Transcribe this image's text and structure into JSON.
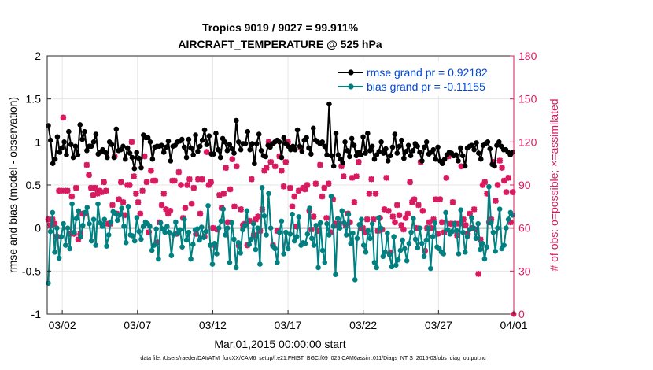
{
  "colors": {
    "rmse": "#000000",
    "bias": "#008080",
    "obs": "#d81b60",
    "zero_line": "#b4b4b4",
    "legend_text": "#0047d8",
    "grid": "#e6e6e6"
  },
  "chart_data": {
    "type": "line",
    "title": "Tropics 9019 / 9027 = 99.911%",
    "subtitle": "AIRCRAFT_TEMPERATURE @ 525 hPa",
    "xlabel": "Mar.01,2015 00:00:00 start",
    "ylabel": "rmse and bias (model - observation)",
    "y2label": "# of obs: o=possible; ×=assimilated",
    "footer": "data file: /Users/raeder/DAI/ATM_forcXX/CAM6_setup/f.e21.FHIST_BGC.f09_025.CAM6assim.011/Diags_NTrS_2015-03/obs_diag_output.nc",
    "xlim": [
      0,
      31
    ],
    "ylim": [
      -1,
      2
    ],
    "y2lim": [
      0,
      180
    ],
    "x_ticks": [
      {
        "value": 1,
        "label": "03/02"
      },
      {
        "value": 6,
        "label": "03/07"
      },
      {
        "value": 11,
        "label": "03/12"
      },
      {
        "value": 16,
        "label": "03/17"
      },
      {
        "value": 21,
        "label": "03/22"
      },
      {
        "value": 26,
        "label": "03/27"
      },
      {
        "value": 31,
        "label": "04/01"
      }
    ],
    "y_ticks": [
      {
        "value": -1,
        "label": "-1"
      },
      {
        "value": -0.5,
        "label": "-0.5"
      },
      {
        "value": 0,
        "label": "0"
      },
      {
        "value": 0.5,
        "label": "0.5"
      },
      {
        "value": 1,
        "label": "1"
      },
      {
        "value": 1.5,
        "label": "1.5"
      },
      {
        "value": 2,
        "label": "2"
      }
    ],
    "y2_ticks": [
      {
        "value": 0,
        "label": "0"
      },
      {
        "value": 30,
        "label": "30"
      },
      {
        "value": 60,
        "label": "60"
      },
      {
        "value": 90,
        "label": "90"
      },
      {
        "value": 120,
        "label": "120"
      },
      {
        "value": 150,
        "label": "150"
      },
      {
        "value": 180,
        "label": "180"
      }
    ],
    "series": [
      {
        "name": "rmse grand pr = 0.92182",
        "values": [
          1.19,
          1.02,
          0.75,
          0.8,
          1.06,
          0.88,
          0.93,
          1.0,
          0.85,
          1.12,
          0.97,
          0.82,
          0.95,
          0.85,
          1.2,
          1.03,
          1.12,
          0.9,
          0.95,
          0.95,
          1.0,
          1.09,
          0.86,
          0.88,
          0.91,
          0.88,
          0.82,
          1.0,
          0.97,
          0.82,
          1.15,
          0.9,
          0.91,
          0.95,
          0.8,
          0.93,
          0.87,
          0.82,
          0.69,
          0.88,
          0.81,
          0.7,
          1.08,
          1.05,
          1.05,
          1.0,
          0.8,
          0.94,
          0.95,
          0.95,
          0.96,
          0.88,
          0.94,
          1.01,
          0.78,
          0.95,
          0.96,
          1.0,
          1.01,
          1.03,
          0.94,
          0.82,
          1.03,
          0.93,
          0.85,
          1.08,
          0.89,
          0.95,
          1.02,
          1.14,
          0.97,
          1.07,
          0.86,
          0.86,
          1.1,
          0.91,
          0.82,
          1.04,
          1.0,
          0.9,
          0.97,
          0.92,
          0.87,
          1.25,
          1.0,
          0.91,
          0.98,
          0.98,
          1.12,
          0.91,
          0.98,
          0.75,
          0.98,
          1.09,
          0.9,
          0.84,
          0.83,
          0.96,
          0.94,
          0.98,
          1.0,
          1.02,
          1.0,
          0.82,
          1.05,
          0.98,
          0.95,
          0.91,
          0.95,
          0.91,
          1.14,
          0.95,
          0.89,
          1.02,
          1.05,
          0.93,
          0.86,
          1.16,
          1.02,
          1.0,
          0.98,
          1.0,
          0.95,
          0.85,
          1.44,
          0.84,
          0.72,
          1.1,
          0.85,
          0.8,
          0.76,
          1.0,
          0.9,
          0.83,
          1.04,
          0.96,
          0.84,
          0.88,
          0.85,
          1.06,
          0.87,
          1.1,
          0.9,
          0.95,
          0.8,
          0.85,
          0.89,
          1.0,
          0.87,
          0.92,
          0.78,
          0.84,
          0.94,
          1.09,
          0.87,
          0.95,
          1.02,
          0.81,
          0.89,
          0.96,
          0.84,
          0.9,
          0.98,
          0.95,
          0.88,
          0.78,
          0.94,
          1.0,
          0.86,
          0.88,
          0.91,
          0.8,
          0.94,
          0.78,
          0.75,
          0.8,
          0.85,
          0.88,
          0.87,
          0.84,
          0.85,
          0.78,
          0.93,
          0.84,
          0.72,
          0.93,
          0.95,
          0.96,
          0.91,
          0.99,
          0.87,
          0.8,
          0.96,
          0.98,
          1.0,
          0.92,
          0.74,
          0.72,
          0.96,
          1.0,
          0.95,
          0.91,
          0.91,
          0.88,
          0.85,
          0.88
        ]
      },
      {
        "name": "bias grand pr = -0.11155",
        "values": [
          -0.64,
          -0.04,
          0.18,
          -0.28,
          0.0,
          -0.35,
          -0.1,
          0.05,
          -0.2,
          0.0,
          -0.24,
          0.28,
          -0.05,
          0.11,
          0.2,
          -0.1,
          0.03,
          0.18,
          0.24,
          0.05,
          -0.15,
          0.1,
          -0.2,
          0.28,
          0.06,
          0.02,
          0.1,
          -0.21,
          -0.08,
          0.07,
          0.19,
          0.17,
          0.09,
          0.15,
          0.23,
          0.02,
          -0.17,
          0.25,
          -0.08,
          -0.09,
          -0.15,
          0.12,
          -0.04,
          -0.13,
          0.02,
          0.07,
          0.05,
          0.02,
          -0.26,
          -0.2,
          -0.01,
          -0.36,
          0.06,
          -0.01,
          -0.05,
          0.02,
          -0.05,
          -0.32,
          -0.08,
          0.07,
          -0.06,
          -0.02,
          -0.22,
          0.1,
          -0.14,
          -0.05,
          -0.36,
          -0.19,
          -0.02,
          -0.01,
          -0.14,
          0.01,
          -0.11,
          -0.04,
          0.26,
          -0.2,
          -0.42,
          -0.18,
          -0.3,
          0.0,
          0.08,
          0.22,
          -0.08,
          0.0,
          -0.4,
          0.06,
          -0.13,
          -0.46,
          -0.17,
          -0.29,
          -0.02,
          0.03,
          0.2,
          -0.19,
          -0.13,
          0.05,
          -0.25,
          0.0,
          -0.42,
          0.47,
          0.14,
          -0.08,
          0.4,
          0.0,
          -0.21,
          -0.24,
          -0.4,
          -0.05,
          0.08,
          -0.3,
          -0.05,
          -0.24,
          -0.07,
          0.16,
          -0.15,
          -0.1,
          0.13,
          -0.2,
          -0.17,
          -0.18,
          -0.07,
          0.23,
          -0.12,
          -0.2,
          0.03,
          -0.46,
          0.06,
          -0.26,
          -0.4,
          0.05,
          -0.08,
          0.37,
          0.02,
          -0.54,
          0.11,
          0.0,
          0.2,
          0.06,
          -0.08,
          0.16,
          -0.18,
          -0.06,
          -0.6,
          -0.12,
          0.04,
          0.1,
          -0.2,
          -0.28,
          -0.03,
          -0.12,
          0.05,
          -0.4,
          -0.46,
          0.12,
          0.0,
          -0.33,
          -0.28,
          -0.06,
          -0.31,
          -0.45,
          -0.1,
          -0.43,
          -0.37,
          -0.26,
          -0.14,
          -0.24,
          -0.38,
          -0.18,
          -0.05,
          0.11,
          -0.13,
          -0.23,
          0.0,
          -0.18,
          -0.33,
          -0.14,
          0.0,
          -0.47,
          -0.1,
          0.06,
          -0.22,
          -0.24,
          -0.28,
          -0.3,
          0.18,
          -0.02,
          -0.07,
          -0.04,
          0.05,
          -0.03,
          -0.3,
          0.21,
          -0.05,
          -0.28,
          -0.1,
          -0.02,
          0.12,
          0.0,
          -0.12,
          0.05,
          -0.25,
          -0.18,
          -0.36,
          -0.22,
          0.48,
          0.06,
          -0.05,
          -0.27,
          0.0,
          0.22,
          -0.24,
          -0.2,
          0.0,
          0.1,
          0.18,
          0.15
        ]
      }
    ],
    "obs_possible": [
      66,
      62,
      66,
      63,
      54,
      86,
      86,
      137,
      86,
      86,
      56,
      82,
      56,
      88,
      52,
      56,
      70,
      70,
      104,
      97,
      88,
      83,
      88,
      84,
      86,
      85,
      92,
      86,
      63,
      63,
      76,
      110,
      70,
      80,
      92,
      78,
      69,
      90,
      90,
      120,
      96,
      84,
      78,
      70,
      86,
      110,
      92,
      57,
      100,
      93,
      93,
      50,
      64,
      76,
      84,
      73,
      70,
      72,
      93,
      93,
      56,
      99,
      90,
      67,
      74,
      90,
      94,
      77,
      88,
      56,
      94,
      70,
      94,
      54,
      113,
      90,
      92,
      60,
      48,
      59,
      83,
      74,
      84,
      102,
      64,
      87,
      108,
      75,
      103,
      48,
      73,
      62,
      63,
      48,
      65,
      94,
      55,
      66,
      68,
      58,
      73,
      100,
      102,
      120,
      106,
      48,
      103,
      58,
      110,
      100,
      89,
      106,
      120,
      88,
      75,
      82,
      61,
      86,
      116,
      88,
      87,
      90,
      72,
      59,
      68,
      91,
      58,
      104,
      82,
      88,
      67,
      91,
      57,
      80,
      63,
      62,
      63,
      103,
      96,
      62,
      70,
      64,
      95,
      78,
      96,
      106,
      60,
      60,
      57,
      66,
      84,
      94,
      66,
      84,
      58,
      67,
      59,
      73,
      95,
      72,
      43,
      68,
      64,
      76,
      69,
      62,
      59,
      67,
      70,
      92,
      78,
      80,
      60,
      76,
      106,
      72,
      44,
      60,
      64,
      60,
      66,
      80,
      56,
      80,
      64,
      57,
      95,
      110,
      63,
      78,
      63,
      55,
      63,
      103,
      66,
      62,
      56,
      70,
      60,
      73,
      59,
      28,
      52,
      90,
      92,
      84,
      64,
      66,
      106,
      79,
      90,
      107,
      102,
      93,
      85,
      95,
      64,
      85
    ],
    "obs_assimilated": [
      66,
      62,
      66,
      63,
      54,
      86,
      86,
      137,
      86,
      86,
      56,
      82,
      56,
      88,
      52,
      56,
      70,
      70,
      104,
      97,
      88,
      83,
      88,
      84,
      86,
      85,
      92,
      86,
      63,
      63,
      76,
      110,
      70,
      80,
      92,
      78,
      69,
      90,
      90,
      120,
      96,
      84,
      78,
      70,
      86,
      110,
      92,
      57,
      100,
      93,
      93,
      50,
      64,
      76,
      84,
      73,
      70,
      72,
      93,
      93,
      56,
      99,
      90,
      67,
      74,
      90,
      94,
      77,
      88,
      56,
      94,
      70,
      94,
      54,
      113,
      90,
      92,
      60,
      48,
      59,
      83,
      74,
      84,
      102,
      64,
      87,
      108,
      75,
      103,
      48,
      73,
      62,
      63,
      48,
      65,
      94,
      55,
      66,
      68,
      58,
      73,
      100,
      102,
      120,
      106,
      48,
      103,
      58,
      110,
      100,
      89,
      106,
      120,
      88,
      75,
      82,
      61,
      86,
      116,
      88,
      87,
      90,
      72,
      59,
      68,
      91,
      58,
      104,
      82,
      88,
      67,
      91,
      57,
      80,
      63,
      62,
      63,
      103,
      96,
      62,
      70,
      64,
      95,
      78,
      96,
      106,
      60,
      60,
      57,
      66,
      84,
      94,
      66,
      84,
      58,
      67,
      59,
      73,
      95,
      72,
      43,
      68,
      64,
      76,
      69,
      62,
      59,
      67,
      70,
      92,
      78,
      80,
      60,
      76,
      106,
      72,
      44,
      60,
      64,
      60,
      66,
      80,
      56,
      80,
      64,
      57,
      95,
      110,
      63,
      78,
      63,
      55,
      63,
      103,
      66,
      62,
      56,
      70,
      60,
      73,
      59,
      28,
      52,
      90,
      92,
      84,
      64,
      66,
      106,
      79,
      90,
      107,
      102,
      93,
      85,
      95,
      64,
      85
    ]
  }
}
